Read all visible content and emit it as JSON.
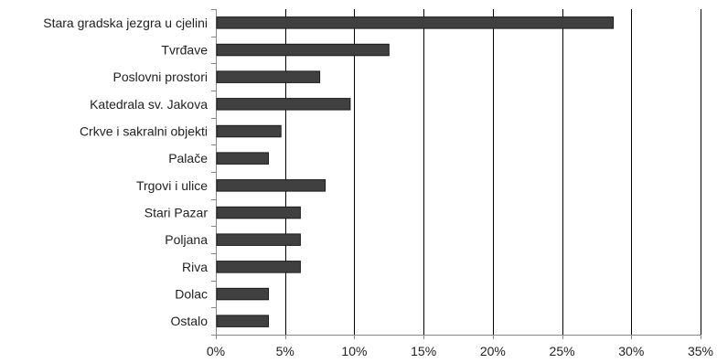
{
  "chart_data": {
    "type": "bar",
    "orientation": "horizontal",
    "title": "",
    "xlabel": "",
    "ylabel": "",
    "categories": [
      "Stara gradska jezgra u cjelini",
      "Tvrđave",
      "Poslovni prostori",
      "Katedrala sv. Jakova",
      "Crkve i sakralni objekti",
      "Palače",
      "Trgovi i ulice",
      "Stari Pazar",
      "Poljana",
      "Riva",
      "Dolac",
      "Ostalo"
    ],
    "values": [
      28.7,
      12.5,
      7.5,
      9.7,
      4.7,
      3.8,
      7.9,
      6.1,
      6.1,
      6.1,
      3.8,
      3.8
    ],
    "xlim": [
      0,
      35
    ],
    "x_ticks": [
      0,
      5,
      10,
      15,
      20,
      25,
      30,
      35
    ],
    "x_tick_labels": [
      "0%",
      "5%",
      "10%",
      "15%",
      "20%",
      "25%",
      "30%",
      "35%"
    ],
    "grid": "vertical",
    "legend": "none",
    "colors": {
      "bar": "#404040",
      "bar_stroke": "#1a1a1a",
      "grid": "#000000",
      "axis": "#888888",
      "text": "#222222"
    }
  }
}
